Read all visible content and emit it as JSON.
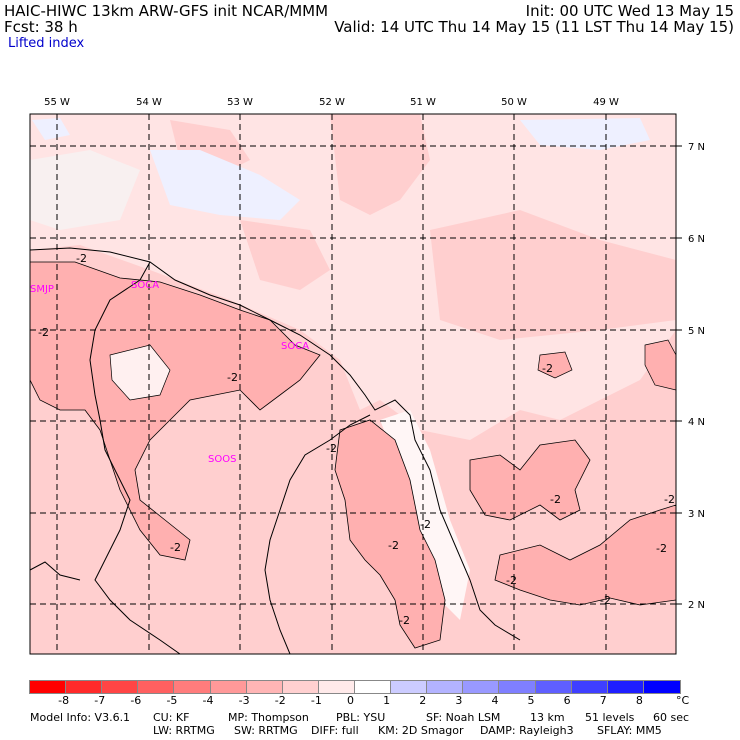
{
  "header": {
    "title_left": "HAIC-HIWC 13km ARW-GFS init   NCAR/MMM",
    "fcst": "Fcst:   38 h",
    "init": "Init: 00 UTC Wed 13 May 15",
    "valid": "Valid: 14 UTC Thu 14 May 15 (11 LST Thu 14 May 15)",
    "field": "Lifted index"
  },
  "map": {
    "lon_labels": [
      "55 W",
      "54 W",
      "53 W",
      "52 W",
      "51 W",
      "50 W",
      "49 W"
    ],
    "lat_labels": [
      "7 N",
      "6 N",
      "5 N",
      "4 N",
      "3 N",
      "2 N"
    ],
    "stations": [
      "SMJP",
      "SOCA",
      "SOCA",
      "SOOS"
    ],
    "contour_labels": [
      "-2",
      "-2",
      "-2",
      "-2",
      "-2",
      "-2",
      "-2",
      "-2",
      "-2",
      "-2",
      "-2",
      "-2",
      "-2",
      "-2"
    ]
  },
  "colorbar": {
    "ticks": [
      "-8",
      "-7",
      "-6",
      "-5",
      "-4",
      "-3",
      "-2",
      "-1",
      "0",
      "1",
      "2",
      "3",
      "4",
      "5",
      "6",
      "7",
      "8"
    ],
    "unit": "°C",
    "colors": [
      "#ff0000",
      "#ff2a2a",
      "#ff4545",
      "#ff6060",
      "#ff7c7c",
      "#ff9999",
      "#ffb5b5",
      "#ffd0d0",
      "#ffeaea",
      "#ffffff",
      "#ccccff",
      "#b3b3ff",
      "#9999ff",
      "#7f7fff",
      "#5f5fff",
      "#3f3fff",
      "#1f1fff",
      "#0000ff"
    ]
  },
  "footer": {
    "line1": [
      "Model Info: V3.6.1",
      "CU: KF",
      "MP: Thompson",
      "PBL: YSU",
      "SF: Noah LSM",
      "13 km",
      "51 levels",
      "60 sec"
    ],
    "line2": [
      "LW: RRTMG",
      "SW: RRTMG",
      "DIFF: full",
      "KM: 2D Smagor",
      "DAMP: Rayleigh3",
      "SFLAY: MM5"
    ]
  }
}
